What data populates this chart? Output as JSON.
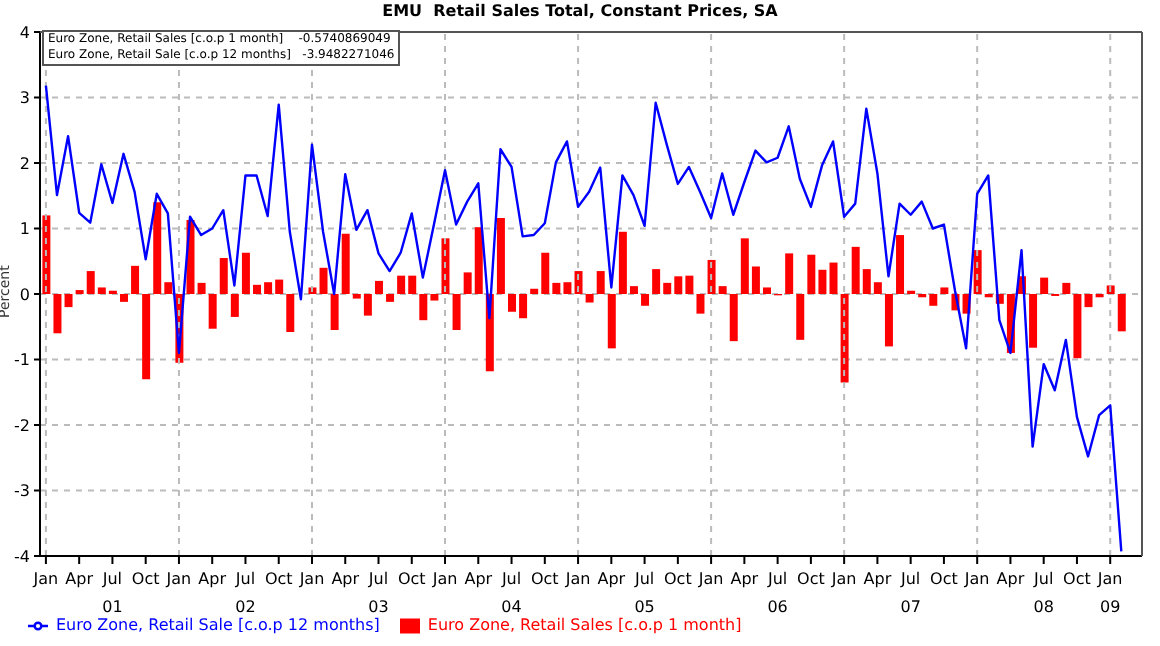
{
  "chart_data": {
    "type": "bar",
    "title": "EMU  Retail Sales Total, Constant Prices, SA",
    "ylabel": "Percent",
    "annotations": [
      "Euro Zone, Retail Sales [c.o.p 1 month]    -0.5740869049",
      "Euro Zone, Retail Sale [c.o.p 12 months]   -3.9482271046"
    ],
    "x": [
      "2001-01",
      "2001-02",
      "2001-03",
      "2001-04",
      "2001-05",
      "2001-06",
      "2001-07",
      "2001-08",
      "2001-09",
      "2001-10",
      "2001-11",
      "2001-12",
      "2002-01",
      "2002-02",
      "2002-03",
      "2002-04",
      "2002-05",
      "2002-06",
      "2002-07",
      "2002-08",
      "2002-09",
      "2002-10",
      "2002-11",
      "2002-12",
      "2003-01",
      "2003-02",
      "2003-03",
      "2003-04",
      "2003-05",
      "2003-06",
      "2003-07",
      "2003-08",
      "2003-09",
      "2003-10",
      "2003-11",
      "2003-12",
      "2004-01",
      "2004-02",
      "2004-03",
      "2004-04",
      "2004-05",
      "2004-06",
      "2004-07",
      "2004-08",
      "2004-09",
      "2004-10",
      "2004-11",
      "2004-12",
      "2005-01",
      "2005-02",
      "2005-03",
      "2005-04",
      "2005-05",
      "2005-06",
      "2005-07",
      "2005-08",
      "2005-09",
      "2005-10",
      "2005-11",
      "2005-12",
      "2006-01",
      "2006-02",
      "2006-03",
      "2006-04",
      "2006-05",
      "2006-06",
      "2006-07",
      "2006-08",
      "2006-09",
      "2006-10",
      "2006-11",
      "2006-12",
      "2007-01",
      "2007-02",
      "2007-03",
      "2007-04",
      "2007-05",
      "2007-06",
      "2007-07",
      "2007-08",
      "2007-09",
      "2007-10",
      "2007-11",
      "2007-12",
      "2008-01",
      "2008-02",
      "2008-03",
      "2008-04",
      "2008-05",
      "2008-06",
      "2008-07",
      "2008-08",
      "2008-09",
      "2008-10",
      "2008-11",
      "2008-12",
      "2009-01",
      "2009-02"
    ],
    "series": [
      {
        "name": "Euro Zone, Retail Sales [c.o.p 1 month]",
        "color": "#ff0000",
        "values": [
          1.2,
          -0.6,
          -0.2,
          0.06,
          0.35,
          0.1,
          0.05,
          -0.12,
          0.43,
          -1.3,
          1.4,
          0.18,
          -1.05,
          1.13,
          0.17,
          -0.53,
          0.55,
          -0.35,
          0.63,
          0.14,
          0.18,
          0.22,
          -0.58,
          0.0,
          0.1,
          0.4,
          -0.55,
          0.92,
          -0.07,
          -0.33,
          0.2,
          -0.12,
          0.28,
          0.28,
          -0.4,
          -0.1,
          0.85,
          -0.55,
          0.33,
          1.02,
          -1.18,
          1.16,
          -0.27,
          -0.37,
          0.08,
          0.63,
          0.17,
          0.18,
          0.35,
          -0.13,
          0.35,
          -0.83,
          0.95,
          0.12,
          -0.18,
          0.38,
          0.17,
          0.27,
          0.28,
          -0.3,
          0.52,
          0.12,
          -0.72,
          0.85,
          0.42,
          0.1,
          -0.02,
          0.62,
          -0.7,
          0.6,
          0.37,
          0.48,
          -1.35,
          0.72,
          0.38,
          0.18,
          -0.8,
          0.9,
          0.05,
          -0.05,
          -0.18,
          0.1,
          -0.25,
          -0.3,
          0.67,
          -0.05,
          -0.15,
          -0.9,
          0.27,
          -0.82,
          0.25,
          -0.03,
          0.17,
          -0.98,
          -0.2,
          -0.05,
          0.13,
          -0.57
        ]
      },
      {
        "name": "Euro Zone, Retail Sale [c.o.p 12 months]",
        "type": "line",
        "color": "#0000ff",
        "values": [
          3.18,
          1.51,
          2.41,
          1.24,
          1.09,
          1.98,
          1.39,
          2.14,
          1.56,
          0.53,
          1.53,
          1.23,
          -0.9,
          1.18,
          0.9,
          1.0,
          1.28,
          0.13,
          1.81,
          1.81,
          1.19,
          2.89,
          0.95,
          -0.08,
          2.28,
          0.95,
          0.0,
          1.83,
          0.98,
          1.28,
          0.62,
          0.35,
          0.63,
          1.23,
          0.25,
          1.06,
          1.89,
          1.06,
          1.41,
          1.69,
          -0.37,
          2.21,
          1.94,
          0.88,
          0.9,
          1.08,
          2.01,
          2.33,
          1.33,
          1.56,
          1.93,
          0.1,
          1.81,
          1.51,
          1.04,
          2.92,
          2.28,
          1.68,
          1.94,
          1.56,
          1.16,
          1.84,
          1.21,
          1.71,
          2.19,
          2.01,
          2.08,
          2.56,
          1.76,
          1.33,
          1.96,
          2.33,
          1.18,
          1.38,
          2.83,
          1.84,
          0.27,
          1.38,
          1.21,
          1.41,
          1.0,
          1.06,
          0.05,
          -0.83,
          1.53,
          1.81,
          -0.4,
          -0.9,
          0.67,
          -2.33,
          -1.07,
          -1.47,
          -0.7,
          -1.88,
          -2.48,
          -1.85,
          -1.7,
          -3.93
        ]
      }
    ],
    "xlim": [
      "2000-12-15",
      "2009-03-27"
    ],
    "xticks": [
      {
        "value": "2001-01",
        "label": "Jan"
      },
      {
        "value": "2001-04",
        "label": "Apr"
      },
      {
        "value": "2001-07",
        "label": "Jul\n01"
      },
      {
        "value": "2001-10",
        "label": "Oct"
      },
      {
        "value": "2002-01",
        "label": "Jan"
      },
      {
        "value": "2002-04",
        "label": "Apr"
      },
      {
        "value": "2002-07",
        "label": "Jul\n02"
      },
      {
        "value": "2002-10",
        "label": "Oct"
      },
      {
        "value": "2003-01",
        "label": "Jan"
      },
      {
        "value": "2003-04",
        "label": "Apr"
      },
      {
        "value": "2003-07",
        "label": "Jul\n03"
      },
      {
        "value": "2003-10",
        "label": "Oct"
      },
      {
        "value": "2004-01",
        "label": "Jan"
      },
      {
        "value": "2004-04",
        "label": "Apr"
      },
      {
        "value": "2004-07",
        "label": "Jul\n04"
      },
      {
        "value": "2004-10",
        "label": "Oct"
      },
      {
        "value": "2005-01",
        "label": "Jan"
      },
      {
        "value": "2005-04",
        "label": "Apr"
      },
      {
        "value": "2005-07",
        "label": "Jul\n05"
      },
      {
        "value": "2005-10",
        "label": "Oct"
      },
      {
        "value": "2006-01",
        "label": "Jan"
      },
      {
        "value": "2006-04",
        "label": "Apr"
      },
      {
        "value": "2006-07",
        "label": "Jul\n06"
      },
      {
        "value": "2006-10",
        "label": "Oct"
      },
      {
        "value": "2007-01",
        "label": "Jan"
      },
      {
        "value": "2007-04",
        "label": "Apr"
      },
      {
        "value": "2007-07",
        "label": "Jul\n07"
      },
      {
        "value": "2007-10",
        "label": "Oct"
      },
      {
        "value": "2008-01",
        "label": "Jan"
      },
      {
        "value": "2008-04",
        "label": "Apr"
      },
      {
        "value": "2008-07",
        "label": "Jul\n08"
      },
      {
        "value": "2008-10",
        "label": "Oct"
      },
      {
        "value": "2009-01",
        "label": "Jan\n09"
      }
    ],
    "ylim": [
      -4,
      4
    ],
    "yticks": [
      -4,
      -3,
      -2,
      -1,
      0,
      1,
      2,
      3,
      4
    ],
    "grid": true,
    "legend": "bottom",
    "marker": "none",
    "line_style": "solid"
  }
}
